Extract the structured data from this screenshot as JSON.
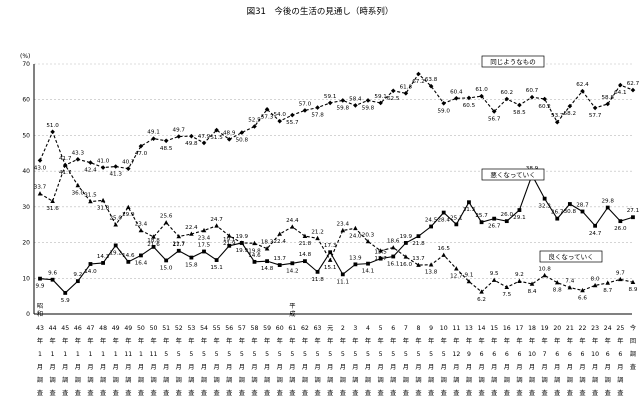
{
  "chart_data": {
    "type": "line",
    "title": "図31　今後の生活の見通し（時系列）",
    "ylabel": "(%)",
    "ylim": [
      0,
      70
    ],
    "yticks": [
      0,
      10,
      20,
      30,
      40,
      50,
      60,
      70
    ],
    "grid": true,
    "era_marks": [
      {
        "index": 0,
        "label": "昭和"
      },
      {
        "index": 20,
        "label": "平成"
      }
    ],
    "categories": [
      "43年1月調査",
      "44年1月調査",
      "45年1月調査",
      "46年1月調査",
      "47年1月調査",
      "48年1月調査",
      "49年1月調査",
      "49年11月調査",
      "50年1月調査",
      "50年11月調査",
      "51年5月調査",
      "52年5月調査",
      "53年5月調査",
      "54年5月調査",
      "55年5月調査",
      "56年5月調査",
      "57年5月調査",
      "58年5月調査",
      "59年5月調査",
      "60年5月調査",
      "61年5月調査",
      "62年5月調査",
      "63年5月調査",
      "元年5月調査",
      "2年5月調査",
      "3年5月調査",
      "4年5月調査",
      "5年5月調査",
      "6年5月調査",
      "7年5月調査",
      "8年5月調査",
      "9年5月調査",
      "10年5月調査",
      "11年12月調査",
      "13年9月調査",
      "14年6月調査",
      "15年6月調査",
      "16年6月調査",
      "17年6月調査",
      "18年10月調査",
      "19年7月調査",
      "20年6月調査",
      "21年6月調査",
      "22年6月調査",
      "23年10月調査",
      "24年6月調査",
      "25年6月調査",
      "今回調査"
    ],
    "category_display": [
      [
        "43",
        "年",
        "1",
        "月",
        "調",
        "査"
      ],
      [
        "44",
        "年",
        "1",
        "月",
        "調",
        "査"
      ],
      [
        "45",
        "年",
        "1",
        "月",
        "調",
        "査"
      ],
      [
        "46",
        "年",
        "1",
        "月",
        "調",
        "査"
      ],
      [
        "47",
        "年",
        "1",
        "月",
        "調",
        "査"
      ],
      [
        "48",
        "年",
        "1",
        "月",
        "調",
        "査"
      ],
      [
        "49",
        "年",
        "1",
        "月",
        "調",
        "査"
      ],
      [
        "49",
        "年",
        "11",
        "月",
        "調",
        "査"
      ],
      [
        "50",
        "年",
        "1",
        "月",
        "調",
        "査"
      ],
      [
        "50",
        "年",
        "11",
        "月",
        "調",
        "査"
      ],
      [
        "51",
        "年",
        "5",
        "月",
        "調",
        "査"
      ],
      [
        "52",
        "年",
        "5",
        "月",
        "調",
        "査"
      ],
      [
        "53",
        "年",
        "5",
        "月",
        "調",
        "査"
      ],
      [
        "54",
        "年",
        "5",
        "月",
        "調",
        "査"
      ],
      [
        "55",
        "年",
        "5",
        "月",
        "調",
        "査"
      ],
      [
        "56",
        "年",
        "5",
        "月",
        "調",
        "査"
      ],
      [
        "57",
        "年",
        "5",
        "月",
        "調",
        "査"
      ],
      [
        "58",
        "年",
        "5",
        "月",
        "調",
        "査"
      ],
      [
        "59",
        "年",
        "5",
        "月",
        "調",
        "査"
      ],
      [
        "60",
        "年",
        "5",
        "月",
        "調",
        "査"
      ],
      [
        "61",
        "年",
        "5",
        "月",
        "調",
        "査"
      ],
      [
        "62",
        "年",
        "5",
        "月",
        "調",
        "査"
      ],
      [
        "63",
        "年",
        "5",
        "月",
        "調",
        "査"
      ],
      [
        "元",
        "年",
        "5",
        "月",
        "調",
        "査"
      ],
      [
        "2",
        "年",
        "5",
        "月",
        "調",
        "査"
      ],
      [
        "3",
        "年",
        "5",
        "月",
        "調",
        "査"
      ],
      [
        "4",
        "年",
        "5",
        "月",
        "調",
        "査"
      ],
      [
        "5",
        "年",
        "5",
        "月",
        "調",
        "査"
      ],
      [
        "6",
        "年",
        "5",
        "月",
        "調",
        "査"
      ],
      [
        "7",
        "年",
        "5",
        "月",
        "調",
        "査"
      ],
      [
        "8",
        "年",
        "5",
        "月",
        "調",
        "査"
      ],
      [
        "9",
        "年",
        "5",
        "月",
        "調",
        "査"
      ],
      [
        "10",
        "年",
        "5",
        "月",
        "調",
        "査"
      ],
      [
        "11",
        "年",
        "12",
        "月",
        "調",
        "査"
      ],
      [
        "13",
        "年",
        "9",
        "月",
        "調",
        "査"
      ],
      [
        "14",
        "年",
        "6",
        "月",
        "調",
        "査"
      ],
      [
        "15",
        "年",
        "6",
        "月",
        "調",
        "査"
      ],
      [
        "16",
        "年",
        "6",
        "月",
        "調",
        "査"
      ],
      [
        "17",
        "年",
        "6",
        "月",
        "調",
        "査"
      ],
      [
        "18",
        "年",
        "10",
        "月",
        "調",
        "査"
      ],
      [
        "19",
        "年",
        "7",
        "月",
        "調",
        "査"
      ],
      [
        "20",
        "年",
        "6",
        "月",
        "調",
        "査"
      ],
      [
        "21",
        "年",
        "6",
        "月",
        "調",
        "査"
      ],
      [
        "22",
        "年",
        "6",
        "月",
        "調",
        "査"
      ],
      [
        "23",
        "年",
        "10",
        "月",
        "調",
        "査"
      ],
      [
        "24",
        "年",
        "6",
        "月",
        "調",
        "査"
      ],
      [
        "25",
        "年",
        "6",
        "月",
        "調",
        "査"
      ],
      [
        "今",
        "回",
        "調",
        "査"
      ]
    ],
    "series": [
      {
        "name": "同じようなもの",
        "style": "dashed",
        "color": "#000000",
        "values": [
          43.0,
          51.0,
          41.7,
          43.3,
          42.4,
          41.0,
          41.3,
          40.7,
          47.0,
          49.1,
          48.5,
          49.7,
          49.8,
          47.9,
          51.5,
          48.9,
          50.8,
          52.5,
          57.3,
          54.0,
          55.7,
          57.0,
          57.8,
          59.1,
          59.8,
          58.4,
          59.8,
          59.1,
          62.5,
          61.8,
          67.2,
          63.8,
          59.0,
          60.4,
          60.5,
          61.0,
          56.7,
          60.2,
          58.5,
          60.7,
          60.2,
          53.7,
          58.2,
          62.4,
          57.7,
          58.8,
          64.1,
          62.7
        ]
      },
      {
        "name": "悪くなっていく",
        "style": "dashed",
        "color": "#000000",
        "values": [
          33.7,
          31.6,
          41.7,
          36.0,
          31.5,
          31.8,
          25.0,
          29.9,
          23.4,
          21.6,
          25.6,
          21.7,
          22.4,
          23.4,
          24.7,
          21.9,
          19.9,
          19.8,
          18.3,
          22.4,
          24.4,
          21.8,
          21.2,
          15.1,
          23.4,
          24.0,
          20.3,
          17.7,
          18.6,
          16.0,
          13.7,
          13.8,
          16.5,
          12.7,
          9.1,
          6.2,
          9.5,
          7.5,
          9.2,
          8.4,
          10.8,
          8.8,
          7.4,
          6.6,
          8.0,
          8.7,
          9.7,
          8.9
        ]
      },
      {
        "name": "良くなっていく",
        "style": "solid",
        "color": "#000000",
        "values": [
          9.9,
          9.6,
          5.9,
          9.2,
          14.0,
          14.3,
          19.2,
          14.6,
          16.4,
          18.8,
          15.0,
          17.7,
          15.8,
          17.5,
          15.1,
          19.1,
          19.9,
          14.6,
          14.8,
          13.7,
          14.2,
          14.8,
          11.8,
          17.3,
          11.1,
          13.9,
          14.1,
          15.5,
          16.1,
          19.9,
          21.8,
          24.5,
          28.4,
          25.1,
          31.3,
          25.7,
          26.7,
          26.0,
          29.1,
          38.9,
          32.3,
          26.7,
          30.8,
          28.7,
          24.7,
          29.8,
          26.0,
          27.1
        ]
      }
    ],
    "labels_shown": {
      "同じようなもの": [
        "43.0",
        "51.0",
        "41.7",
        "43.3",
        "42.4",
        "41.0",
        "41.3",
        "40.7",
        "47.0",
        "49.1",
        "48.5",
        "49.7",
        "49.8",
        "47.9",
        "51.5",
        "48.9",
        "50.8",
        "52.5",
        "57.3",
        "54.0",
        "55.7",
        "57.0",
        "57.8",
        "59.1",
        "59.8",
        "58.4",
        "59.8",
        "59.1",
        "62.5",
        "61.8",
        "67.2",
        "63.8",
        "59.0",
        "60.4",
        "60.5",
        "61.0",
        "56.7",
        "60.2",
        "58.5",
        "60.7",
        "60.2",
        "53.7",
        "58.2",
        "62.4",
        "57.7",
        "58.8",
        "64.1",
        "62.7"
      ]
    }
  }
}
